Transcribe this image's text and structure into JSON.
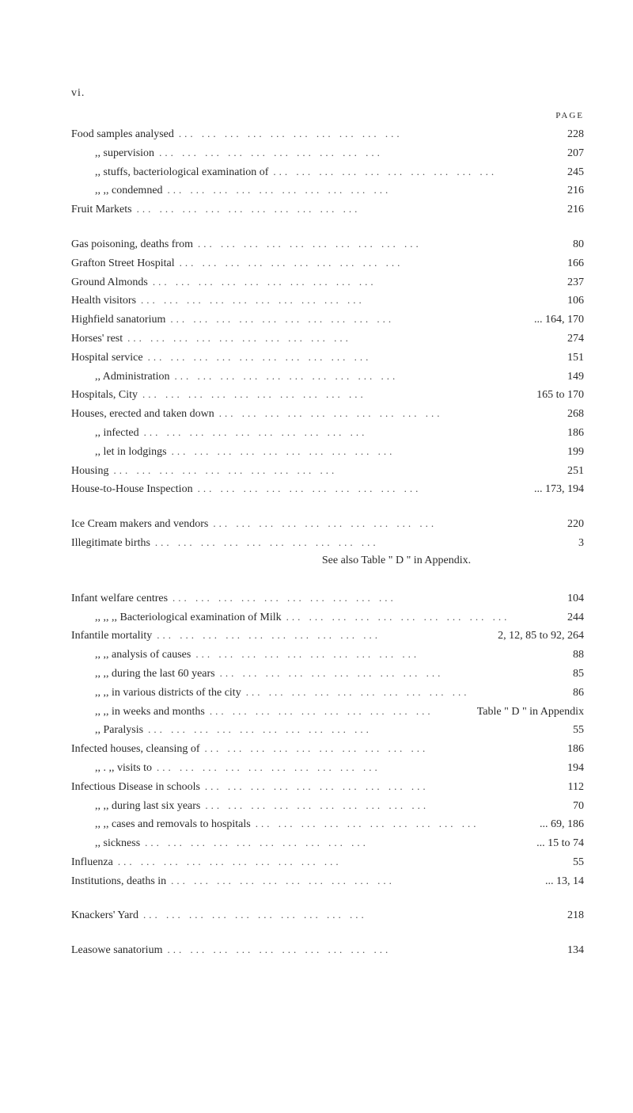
{
  "page": {
    "roman": "vi.",
    "columnHeader": "PAGE"
  },
  "sections": [
    {
      "entries": [
        {
          "label": "Food samples analysed",
          "page": "228",
          "indent": 0
        },
        {
          "label": ",,   supervision",
          "page": "207",
          "indent": 1
        },
        {
          "label": ",,   stuffs, bacteriological examination of",
          "page": "245",
          "indent": 1
        },
        {
          "label": ",,     ,,    condemned",
          "page": "216",
          "indent": 1
        },
        {
          "label": "Fruit Markets",
          "page": "216",
          "indent": 0
        }
      ]
    },
    {
      "entries": [
        {
          "label": "Gas poisoning, deaths from",
          "page": "80",
          "indent": 0
        },
        {
          "label": "Grafton Street Hospital",
          "page": "166",
          "indent": 0
        },
        {
          "label": "Ground Almonds",
          "page": "237",
          "indent": 0
        },
        {
          "label": "Health visitors",
          "page": "106",
          "indent": 0
        },
        {
          "label": "Highfield sanatorium",
          "page": "... 164, 170",
          "indent": 0
        },
        {
          "label": "Horses' rest",
          "page": "274",
          "indent": 0
        },
        {
          "label": "Hospital service",
          "page": "151",
          "indent": 0
        },
        {
          "label": ",,    Administration",
          "page": "149",
          "indent": 1
        },
        {
          "label": "Hospitals, City",
          "page": "165 to 170",
          "indent": 0
        },
        {
          "label": "Houses, erected and taken down",
          "page": "268",
          "indent": 0
        },
        {
          "label": ",,    infected",
          "page": "186",
          "indent": 1
        },
        {
          "label": ",,    let in lodgings",
          "page": "199",
          "indent": 1
        },
        {
          "label": "Housing",
          "page": "251",
          "indent": 0
        },
        {
          "label": "House-to-House Inspection",
          "page": "... 173, 194",
          "indent": 0
        }
      ]
    },
    {
      "entries": [
        {
          "label": "Ice Cream makers and vendors",
          "page": "220",
          "indent": 0
        },
        {
          "label": "Illegitimate births",
          "page": "3",
          "indent": 0
        }
      ],
      "seeAlso": "See also Table \" D \" in Appendix."
    },
    {
      "entries": [
        {
          "label": "Infant welfare centres",
          "page": "104",
          "indent": 0
        },
        {
          "label": ",,       ,,       ,,     Bacteriological examination of Milk",
          "page": "244",
          "indent": 1
        },
        {
          "label": "Infantile mortality",
          "page": "2, 12, 85 to 92, 264",
          "indent": 0
        },
        {
          "label": ",,           ,,    analysis of causes",
          "page": "88",
          "indent": 1
        },
        {
          "label": ",,           ,,    during the last 60 years",
          "page": "85",
          "indent": 1
        },
        {
          "label": ",,           ,,    in various districts of the city",
          "page": "86",
          "indent": 1
        },
        {
          "label": ",,           ,,    in weeks and months",
          "page": "Table \" D \" in Appendix",
          "indent": 1
        },
        {
          "label": ",,    Paralysis",
          "page": "55",
          "indent": 1
        },
        {
          "label": "Infected houses, cleansing of",
          "page": "186",
          "indent": 0
        },
        {
          "label": ",,    .  ,,    visits to",
          "page": "194",
          "indent": 1
        },
        {
          "label": "Infectious Disease in schools",
          "page": "112",
          "indent": 0
        },
        {
          "label": ",,        ,,    during last six years",
          "page": "70",
          "indent": 1
        },
        {
          "label": ",,        ,,    cases and removals to hospitals",
          "page": "... 69, 186",
          "indent": 1
        },
        {
          "label": ",,    sickness",
          "page": "... 15 to 74",
          "indent": 1
        },
        {
          "label": "Influenza",
          "page": "55",
          "indent": 0
        },
        {
          "label": "Institutions, deaths in",
          "page": "... 13, 14",
          "indent": 0
        }
      ]
    },
    {
      "entries": [
        {
          "label": "Knackers' Yard",
          "page": "218",
          "indent": 0
        }
      ]
    },
    {
      "entries": [
        {
          "label": "Leasowe sanatorium",
          "page": "134",
          "indent": 0
        }
      ]
    }
  ]
}
